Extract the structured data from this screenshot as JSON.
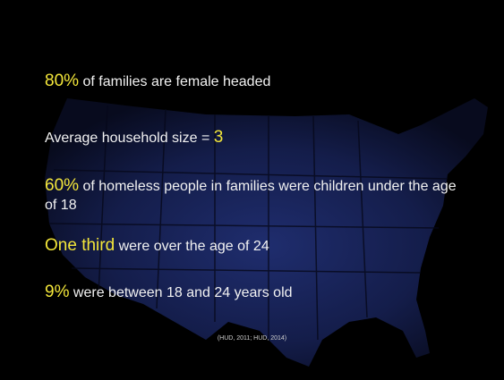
{
  "bullets": [
    [
      {
        "text": "80%",
        "emphasis": true
      },
      {
        "text": " of families are female headed"
      }
    ],
    [
      {
        "text": "Average household size = "
      },
      {
        "text": "3",
        "emphasis": true
      }
    ],
    [
      {
        "text": "60%",
        "emphasis": true
      },
      {
        "text": " of homeless people in families were children under the age of 18"
      }
    ],
    [
      {
        "text": "One third",
        "emphasis": true
      },
      {
        "text": " were over the age of 24"
      }
    ],
    [
      {
        "text": "9%",
        "emphasis": true
      },
      {
        "text": " were between 18 and 24 years old"
      }
    ]
  ],
  "citation": "(HUD, 2011; HUD, 2014)"
}
